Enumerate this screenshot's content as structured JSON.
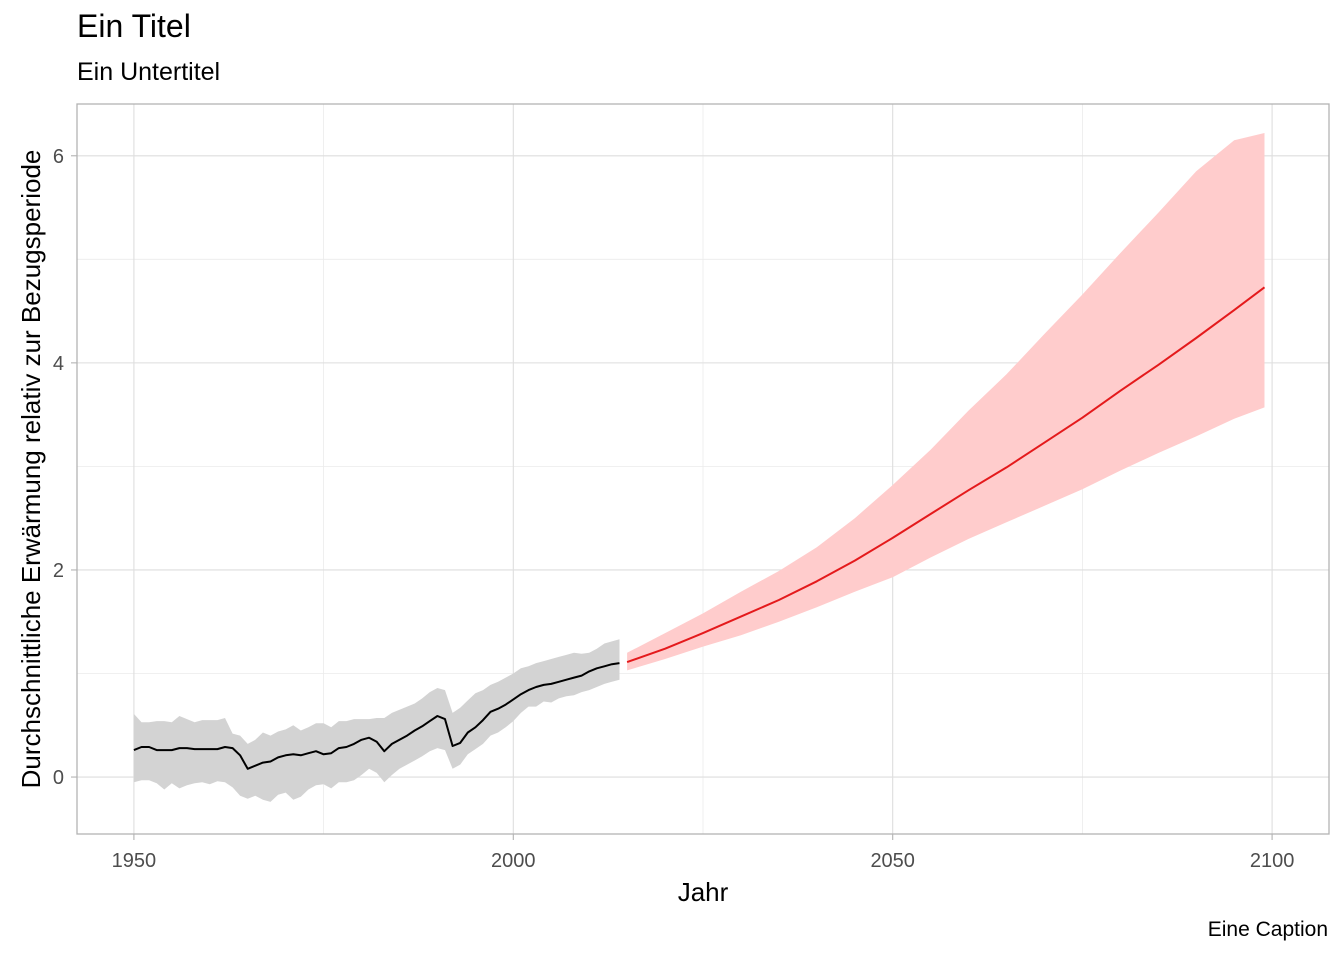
{
  "chart_data": {
    "type": "line",
    "title": "Ein Titel",
    "subtitle": "Ein Untertitel",
    "caption": "Eine Caption",
    "xlabel": "Jahr",
    "ylabel": "Durchschnittliche Erwärmung relativ zur Bezugsperiode",
    "xlim": [
      1942.5,
      2107.5
    ],
    "ylim": [
      -0.55,
      6.5
    ],
    "x_ticks": [
      1950,
      2000,
      2050,
      2100
    ],
    "y_ticks": [
      0,
      2,
      4,
      6
    ],
    "grid": true,
    "legend": "none",
    "colors": {
      "historical_line": "#000000",
      "historical_band": "#d3d3d3",
      "projection_line": "#e41a1c",
      "projection_band": "#ffcccc"
    },
    "series": [
      {
        "x": [
          1950,
          1951,
          1952,
          1953,
          1954,
          1955,
          1956,
          1957,
          1958,
          1959,
          1960,
          1961,
          1962,
          1963,
          1964,
          1965,
          1966,
          1967,
          1968,
          1969,
          1970,
          1971,
          1972,
          1973,
          1974,
          1975,
          1976,
          1977,
          1978,
          1979,
          1980,
          1981,
          1982,
          1983,
          1984,
          1985,
          1986,
          1987,
          1988,
          1989,
          1990,
          1991,
          1992,
          1993,
          1994,
          1995,
          1996,
          1997,
          1998,
          1999,
          2000,
          2001,
          2002,
          2003,
          2004,
          2005,
          2006,
          2007,
          2008,
          2009,
          2010,
          2011,
          2012,
          2013,
          2014
        ],
        "y": [
          0.26,
          0.29,
          0.29,
          0.26,
          0.26,
          0.26,
          0.28,
          0.28,
          0.27,
          0.27,
          0.27,
          0.27,
          0.29,
          0.28,
          0.21,
          0.08,
          0.11,
          0.14,
          0.15,
          0.19,
          0.21,
          0.22,
          0.21,
          0.23,
          0.25,
          0.22,
          0.23,
          0.28,
          0.29,
          0.32,
          0.36,
          0.38,
          0.34,
          0.25,
          0.32,
          0.36,
          0.4,
          0.45,
          0.49,
          0.54,
          0.59,
          0.56,
          0.3,
          0.33,
          0.43,
          0.48,
          0.55,
          0.63,
          0.66,
          0.7,
          0.75,
          0.8,
          0.84,
          0.87,
          0.89,
          0.9,
          0.92,
          0.94,
          0.96,
          0.98,
          1.02,
          1.05,
          1.07,
          1.09,
          1.1
        ],
        "lower": [
          -0.05,
          -0.03,
          -0.03,
          -0.06,
          -0.12,
          -0.06,
          -0.11,
          -0.08,
          -0.06,
          -0.05,
          -0.07,
          -0.04,
          -0.05,
          -0.1,
          -0.18,
          -0.21,
          -0.18,
          -0.22,
          -0.24,
          -0.17,
          -0.15,
          -0.22,
          -0.19,
          -0.12,
          -0.08,
          -0.07,
          -0.11,
          -0.05,
          -0.05,
          -0.03,
          0.02,
          0.08,
          0.04,
          -0.05,
          0.02,
          0.08,
          0.12,
          0.16,
          0.2,
          0.25,
          0.28,
          0.26,
          0.08,
          0.12,
          0.22,
          0.27,
          0.32,
          0.4,
          0.43,
          0.48,
          0.54,
          0.62,
          0.68,
          0.68,
          0.73,
          0.72,
          0.76,
          0.78,
          0.79,
          0.82,
          0.84,
          0.87,
          0.9,
          0.92,
          0.94
        ],
        "upper": [
          0.61,
          0.53,
          0.53,
          0.54,
          0.54,
          0.53,
          0.59,
          0.56,
          0.53,
          0.55,
          0.55,
          0.55,
          0.57,
          0.42,
          0.4,
          0.32,
          0.36,
          0.43,
          0.4,
          0.44,
          0.46,
          0.5,
          0.45,
          0.48,
          0.52,
          0.52,
          0.48,
          0.54,
          0.54,
          0.56,
          0.56,
          0.56,
          0.57,
          0.57,
          0.62,
          0.65,
          0.68,
          0.71,
          0.76,
          0.82,
          0.86,
          0.84,
          0.62,
          0.67,
          0.74,
          0.81,
          0.84,
          0.89,
          0.92,
          0.96,
          1.0,
          1.05,
          1.07,
          1.1,
          1.12,
          1.14,
          1.16,
          1.18,
          1.2,
          1.19,
          1.2,
          1.24,
          1.29,
          1.31,
          1.33
        ]
      },
      {
        "x": [
          2015,
          2020,
          2025,
          2030,
          2035,
          2040,
          2045,
          2050,
          2055,
          2060,
          2065,
          2070,
          2075,
          2080,
          2085,
          2090,
          2095,
          2099
        ],
        "y": [
          1.11,
          1.24,
          1.39,
          1.55,
          1.71,
          1.89,
          2.09,
          2.31,
          2.54,
          2.77,
          2.99,
          3.23,
          3.47,
          3.73,
          3.98,
          4.24,
          4.51,
          4.73
        ],
        "lower": [
          1.03,
          1.14,
          1.26,
          1.37,
          1.5,
          1.64,
          1.79,
          1.93,
          2.12,
          2.3,
          2.46,
          2.62,
          2.78,
          2.96,
          3.13,
          3.29,
          3.46,
          3.57
        ],
        "upper": [
          1.2,
          1.39,
          1.58,
          1.79,
          1.99,
          2.22,
          2.5,
          2.82,
          3.16,
          3.54,
          3.89,
          4.28,
          4.66,
          5.06,
          5.45,
          5.85,
          6.15,
          6.22
        ]
      }
    ]
  }
}
